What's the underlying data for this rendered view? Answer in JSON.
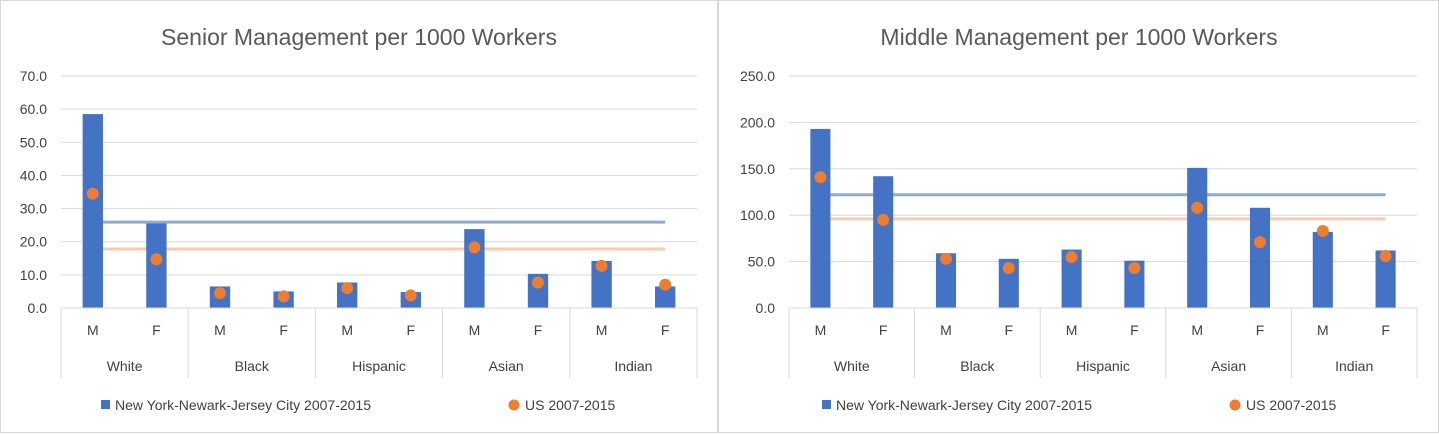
{
  "legend": {
    "series1": "New York-Newark-Jersey City 2007-2015",
    "series2": "US 2007-2015"
  },
  "colors": {
    "bar": "#4472c4",
    "dot": "#ed7d31",
    "bar_avg_line": "#8eaadb",
    "dot_avg_line": "#f8cbad",
    "gridline": "#d9d9d9"
  },
  "chart_data": [
    {
      "type": "bar",
      "title": "Senior Management per 1000 Workers",
      "groups": [
        "White",
        "Black",
        "Hispanic",
        "Asian",
        "Indian"
      ],
      "categories": [
        "M",
        "F",
        "M",
        "F",
        "M",
        "F",
        "M",
        "F",
        "M",
        "F"
      ],
      "ylim": [
        0,
        70
      ],
      "yticks": [
        "0.0",
        "10.0",
        "20.0",
        "30.0",
        "40.0",
        "50.0",
        "60.0",
        "70.0"
      ],
      "series": [
        {
          "name": "New York-Newark-Jersey City 2007-2015",
          "kind": "bar",
          "values": [
            58.5,
            25.5,
            6.5,
            5.0,
            7.7,
            4.8,
            23.8,
            10.3,
            14.2,
            6.5
          ]
        },
        {
          "name": "US 2007-2015",
          "kind": "marker",
          "values": [
            34.5,
            14.7,
            4.5,
            3.5,
            6.0,
            3.8,
            18.3,
            7.7,
            12.7,
            7.0
          ]
        }
      ],
      "averages": {
        "series1": 25.9,
        "series2": 17.8
      },
      "grid": true,
      "legend_position": "bottom"
    },
    {
      "type": "bar",
      "title": "Middle Management per 1000 Workers",
      "groups": [
        "White",
        "Black",
        "Hispanic",
        "Asian",
        "Indian"
      ],
      "categories": [
        "M",
        "F",
        "M",
        "F",
        "M",
        "F",
        "M",
        "F",
        "M",
        "F"
      ],
      "ylim": [
        0,
        250
      ],
      "yticks": [
        "0.0",
        "50.0",
        "100.0",
        "150.0",
        "200.0",
        "250.0"
      ],
      "series": [
        {
          "name": "New York-Newark-Jersey City 2007-2015",
          "kind": "bar",
          "values": [
            193,
            142,
            59,
            53,
            63,
            51,
            151,
            108,
            82,
            62
          ]
        },
        {
          "name": "US 2007-2015",
          "kind": "marker",
          "values": [
            141,
            95,
            53,
            43,
            55,
            43,
            108,
            71,
            83,
            56
          ]
        }
      ],
      "averages": {
        "series1": 122,
        "series2": 96
      },
      "grid": true,
      "legend_position": "bottom"
    }
  ]
}
